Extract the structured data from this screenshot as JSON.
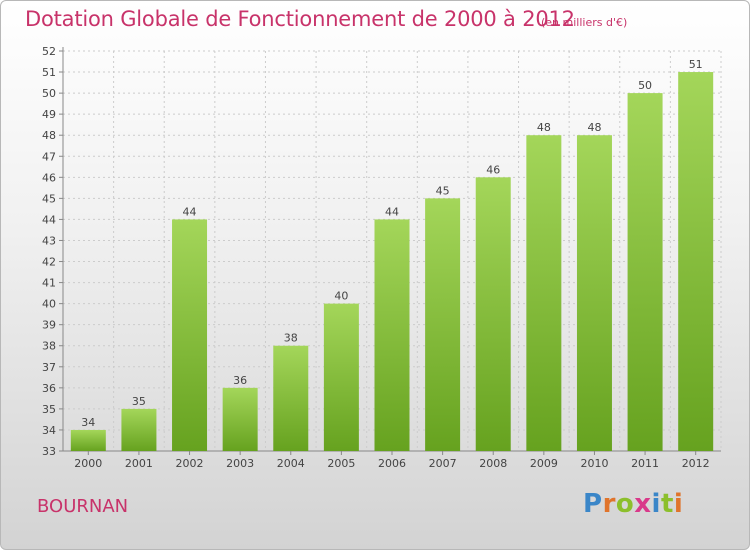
{
  "header": {
    "title": "Dotation Globale de Fonctionnement de 2000 à 2012",
    "unit": "(en milliers d'€)"
  },
  "footer": {
    "commune": "BOURNAN",
    "logo": "Proxiti"
  },
  "colors": {
    "title": "#c8336a",
    "bar_light": "#a4d65a",
    "bar_dark": "#66a21f",
    "grid": "#cccccc"
  },
  "chart_data": {
    "type": "bar",
    "title": "Dotation Globale de Fonctionnement de 2000 à 2012",
    "subtitle": "(en milliers d'€)",
    "xlabel": "",
    "ylabel": "",
    "categories": [
      "2000",
      "2001",
      "2002",
      "2003",
      "2004",
      "2005",
      "2006",
      "2007",
      "2008",
      "2009",
      "2010",
      "2011",
      "2012"
    ],
    "values": [
      34,
      35,
      44,
      36,
      38,
      40,
      44,
      45,
      46,
      48,
      48,
      50,
      51
    ],
    "ylim": [
      33,
      52
    ],
    "yticks": [
      33,
      34,
      35,
      36,
      37,
      38,
      39,
      40,
      41,
      42,
      43,
      44,
      45,
      46,
      47,
      48,
      49,
      50,
      51,
      52
    ],
    "grid": true,
    "data_labels": true
  }
}
